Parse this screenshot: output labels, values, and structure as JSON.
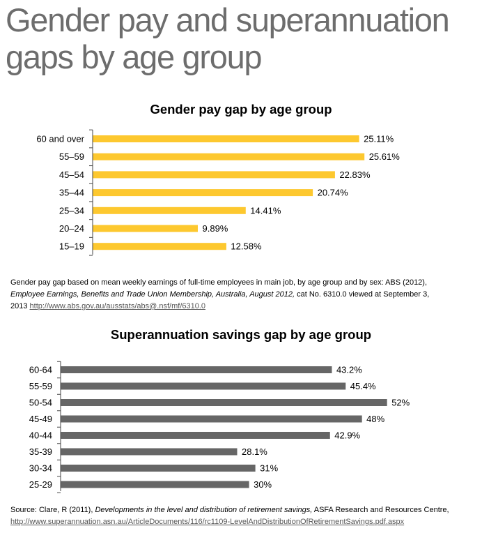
{
  "page": {
    "title": "Gender pay and superannuation gaps by age group"
  },
  "chart_data": [
    {
      "type": "bar",
      "orientation": "horizontal",
      "title": "Gender pay gap by age group",
      "categories": [
        "60 and over",
        "55–59",
        "45–54",
        "35–44",
        "25–34",
        "20–24",
        "15–19"
      ],
      "values": [
        25.11,
        25.61,
        22.83,
        20.74,
        14.41,
        9.89,
        12.58
      ],
      "labels": [
        "25.11%",
        "25.61%",
        "22.83%",
        "20.74%",
        "14.41%",
        "9.89%",
        "12.58%"
      ],
      "unit": "%",
      "xlim": [
        0,
        27.6
      ],
      "color": "#fdc82f",
      "grid": false
    },
    {
      "type": "bar",
      "orientation": "horizontal",
      "title": "Superannuation savings gap by age group",
      "categories": [
        "60-64",
        "55-59",
        "50-54",
        "45-49",
        "40-44",
        "35-39",
        "30-34",
        "25-29"
      ],
      "values": [
        43.2,
        45.4,
        52,
        48,
        42.9,
        28.1,
        31,
        30
      ],
      "labels": [
        "43.2%",
        "45.4%",
        "52%",
        "48%",
        "42.9%",
        "28.1%",
        "31%",
        "30%"
      ],
      "unit": "%",
      "xlim": [
        0,
        55.2
      ],
      "color": "#666666",
      "grid": false
    }
  ],
  "source1": {
    "pre": "Gender pay gap based on mean weekly earnings of full-time employees in main job, by age group and by sex: ABS (2012), ",
    "italic": "Employee Earnings, Benefits and Trade Union Membership, Australia, August 2012,",
    "post": " cat No. 6310.0 viewed at September 3, 2013 ",
    "link": "http://www.abs.gov.au/ausstats/abs@.nsf/mf/6310.0"
  },
  "source2": {
    "pre": "Source: Clare, R (2011), ",
    "italic": "Developments in the level and distribution of retirement savings,",
    "post": " ASFA Research and Resources Centre,",
    "link": "http://www.superannuation.asn.au/ArticleDocuments/116/rc1109-LevelAndDistributionOfRetirementSavings.pdf.aspx"
  }
}
